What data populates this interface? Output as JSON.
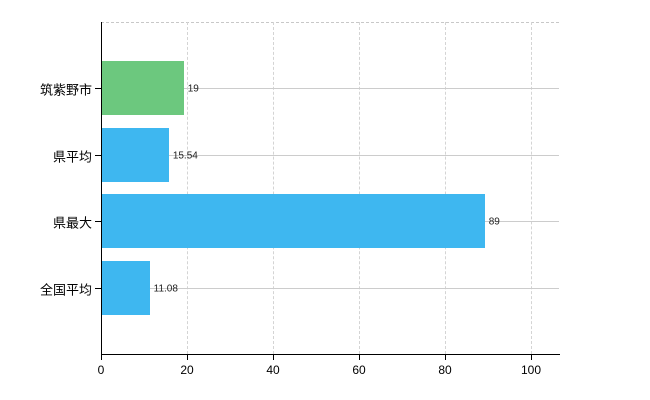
{
  "chart_data": {
    "type": "bar",
    "orientation": "horizontal",
    "categories": [
      "筑紫野市",
      "県平均",
      "県最大",
      "全国平均"
    ],
    "values": [
      19,
      15.54,
      89,
      11.08
    ],
    "data_labels": [
      "19",
      "15.54",
      "89",
      "11.08"
    ],
    "bar_colors": [
      "#6cc87e",
      "#3eb7f0",
      "#3eb7f0",
      "#3eb7f0"
    ],
    "xlim": [
      0,
      100
    ],
    "x_ticks": [
      0,
      20,
      40,
      60,
      80,
      100
    ],
    "x_tick_labels": [
      "0",
      "20",
      "40",
      "60",
      "80",
      "100"
    ],
    "grid": true,
    "vertical_gridline_style": "dashed",
    "horizontal_gridline_style": "solid",
    "gridline_color": "#cccccc",
    "axis_color": "#000000",
    "background_color": "#ffffff",
    "legend": "none"
  }
}
